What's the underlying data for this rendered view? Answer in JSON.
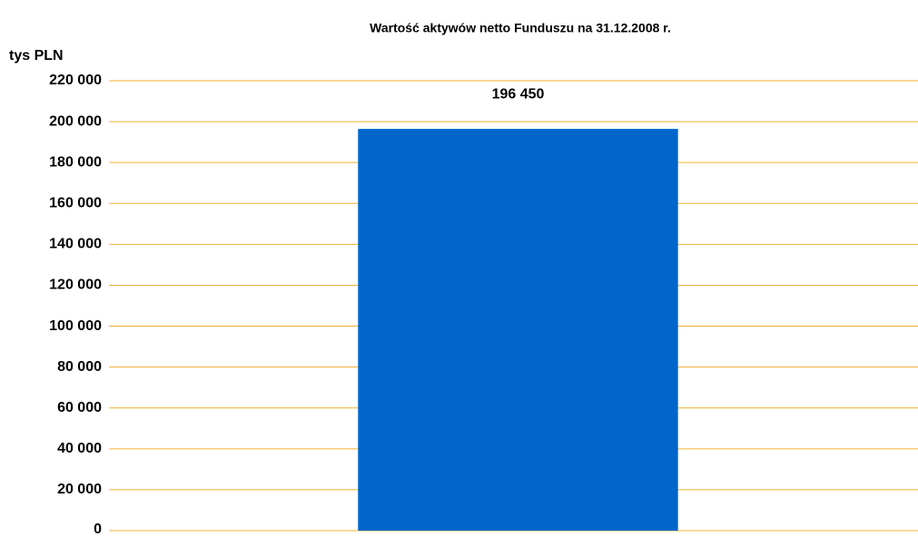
{
  "chart_data": {
    "type": "bar",
    "title": "Wartość aktywów netto Funduszu na 31.12.2008 r.",
    "y_label": "tys PLN",
    "categories": [
      null
    ],
    "values": [
      196450
    ],
    "value_labels": [
      "196 450"
    ],
    "color": "#0066cc",
    "grid_color": "#f0b030",
    "ylim": [
      0,
      220000
    ],
    "yticks": [
      0,
      {
        "value": 20000,
        "label": "20 000"
      },
      {
        "value": 40000,
        "label": "40 000"
      },
      {
        "value": 60000,
        "label": "60 000"
      },
      {
        "value": 80000,
        "label": "80 000"
      },
      {
        "value": 100000,
        "label": "100 000"
      },
      {
        "value": 120000,
        "label": "120 000"
      },
      {
        "value": 140000,
        "label": "140 000"
      },
      {
        "value": 160000,
        "label": "160 000"
      },
      {
        "value": 180000,
        "label": "180 000"
      },
      {
        "value": 200000,
        "label": "200 000"
      },
      {
        "value": 220000,
        "label": "220 000"
      }
    ],
    "grid": true
  }
}
